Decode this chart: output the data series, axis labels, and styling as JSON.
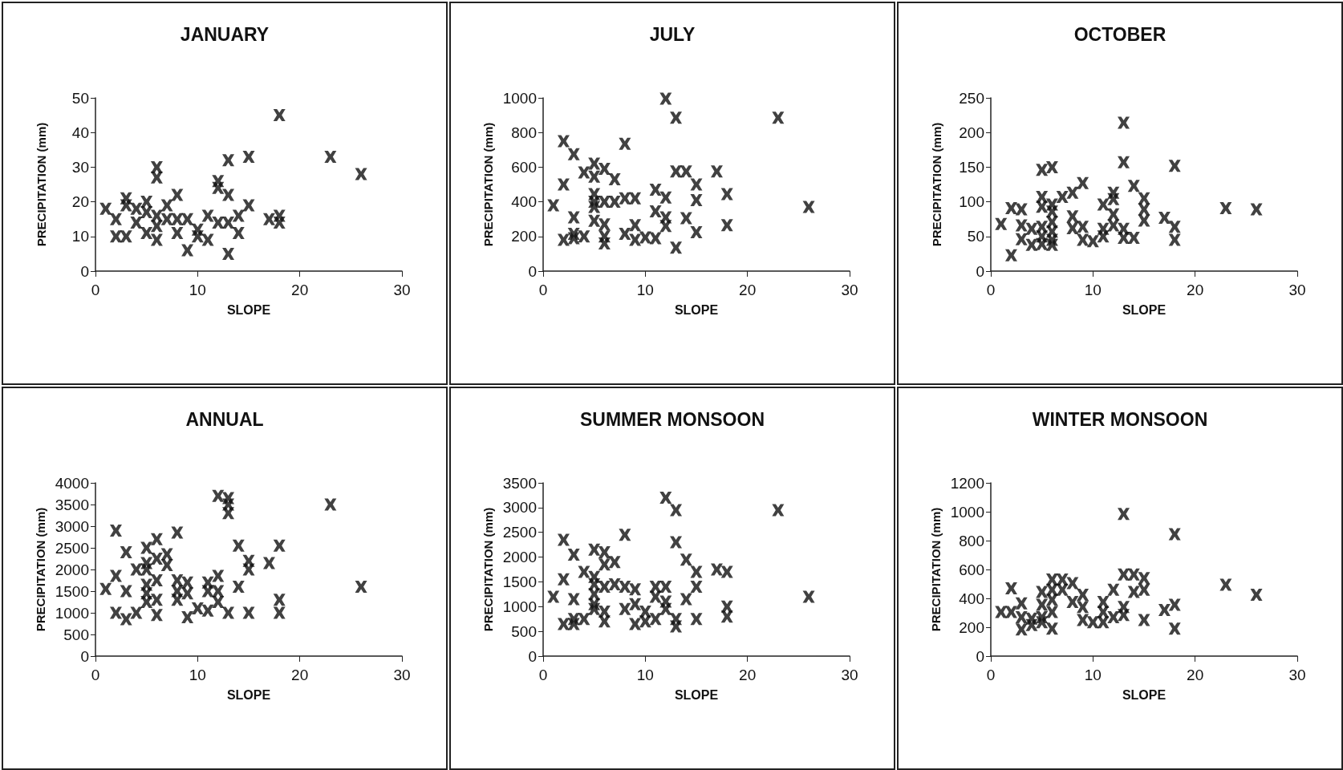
{
  "chart_data": [
    {
      "type": "scatter",
      "title": "JANUARY",
      "xlabel": "SLOPE",
      "ylabel": "PRECIPITATION (mm)",
      "color": "#111111",
      "marker": "cross",
      "xlim": [
        0,
        30
      ],
      "xticks": [
        0,
        10,
        20,
        30
      ],
      "ylim": [
        0,
        50
      ],
      "yticks": [
        0,
        10,
        20,
        30,
        40,
        50
      ],
      "x": [
        1,
        2,
        2,
        3,
        3,
        3,
        4,
        4,
        5,
        5,
        5,
        6,
        6,
        6,
        6,
        6,
        7,
        7,
        8,
        8,
        8,
        9,
        9,
        10,
        10,
        11,
        11,
        12,
        12,
        12,
        13,
        13,
        13,
        13,
        14,
        14,
        15,
        15,
        17,
        18,
        18,
        18,
        23,
        26
      ],
      "values": [
        18,
        15,
        10,
        10,
        21,
        19,
        18,
        14,
        20,
        17,
        11,
        16,
        30,
        27,
        9,
        13,
        19,
        15,
        22,
        11,
        15,
        15,
        6,
        12,
        10,
        16,
        9,
        26,
        24,
        14,
        32,
        22,
        5,
        14,
        16,
        11,
        33,
        19,
        15,
        45,
        16,
        14,
        33,
        28
      ]
    },
    {
      "type": "scatter",
      "title": "JULY",
      "xlabel": "SLOPE",
      "ylabel": "PRECIPITATION (mm)",
      "color": "#111111",
      "marker": "cross",
      "xlim": [
        0,
        30
      ],
      "xticks": [
        0,
        10,
        20,
        30
      ],
      "ylim": [
        0,
        1000
      ],
      "yticks": [
        0,
        200,
        400,
        600,
        800,
        1000
      ],
      "x": [
        1,
        2,
        2,
        2,
        3,
        3,
        3,
        3,
        4,
        4,
        5,
        5,
        5,
        5,
        5,
        5,
        6,
        6,
        6,
        6,
        6,
        7,
        7,
        8,
        8,
        8,
        9,
        9,
        9,
        10,
        11,
        11,
        11,
        12,
        12,
        12,
        12,
        13,
        13,
        13,
        14,
        14,
        15,
        15,
        15,
        17,
        18,
        18,
        23,
        26
      ],
      "values": [
        380,
        750,
        500,
        180,
        675,
        310,
        215,
        190,
        200,
        570,
        620,
        545,
        445,
        400,
        290,
        370,
        590,
        400,
        270,
        200,
        160,
        530,
        400,
        735,
        420,
        215,
        420,
        265,
        180,
        195,
        470,
        345,
        190,
        995,
        425,
        310,
        260,
        885,
        575,
        135,
        575,
        305,
        500,
        410,
        225,
        575,
        445,
        265,
        885,
        370
      ]
    },
    {
      "type": "scatter",
      "title": "OCTOBER",
      "xlabel": "SLOPE",
      "ylabel": "PRECIPITATION (mm)",
      "color": "#111111",
      "marker": "cross",
      "xlim": [
        0,
        30
      ],
      "xticks": [
        0,
        10,
        20,
        30
      ],
      "ylim": [
        0,
        250
      ],
      "yticks": [
        0,
        50,
        100,
        150,
        200,
        250
      ],
      "x": [
        1,
        2,
        2,
        3,
        3,
        3,
        4,
        4,
        5,
        5,
        5,
        5,
        5,
        5,
        6,
        6,
        6,
        6,
        6,
        6,
        6,
        7,
        8,
        8,
        8,
        9,
        9,
        9,
        10,
        11,
        11,
        11,
        12,
        12,
        12,
        12,
        13,
        13,
        13,
        13,
        14,
        14,
        15,
        15,
        15,
        17,
        18,
        18,
        18,
        23,
        26
      ],
      "values": [
        68,
        91,
        23,
        89,
        66,
        46,
        61,
        38,
        146,
        107,
        93,
        64,
        50,
        39,
        150,
        96,
        86,
        71,
        57,
        45,
        38,
        107,
        113,
        79,
        62,
        127,
        64,
        45,
        43,
        96,
        61,
        50,
        113,
        104,
        82,
        66,
        214,
        157,
        61,
        48,
        123,
        48,
        105,
        89,
        73,
        77,
        152,
        64,
        45,
        91,
        89
      ]
    },
    {
      "type": "scatter",
      "title": "ANNUAL",
      "xlabel": "SLOPE",
      "ylabel": "PRECIPITATION (mm)",
      "color": "#111111",
      "marker": "cross",
      "xlim": [
        0,
        30
      ],
      "xticks": [
        0,
        10,
        20,
        30
      ],
      "ylim": [
        0,
        4000
      ],
      "yticks": [
        0,
        500,
        1000,
        1500,
        2000,
        2500,
        3000,
        3500,
        4000
      ],
      "x": [
        1,
        2,
        2,
        2,
        3,
        3,
        3,
        4,
        4,
        5,
        5,
        5,
        5,
        5,
        5,
        6,
        6,
        6,
        6,
        6,
        7,
        7,
        8,
        8,
        8,
        8,
        9,
        9,
        9,
        10,
        11,
        11,
        11,
        12,
        12,
        12,
        12,
        13,
        13,
        13,
        13,
        14,
        14,
        15,
        15,
        15,
        17,
        18,
        18,
        18,
        23,
        26
      ],
      "values": [
        1550,
        2900,
        1850,
        1000,
        2400,
        1500,
        850,
        1000,
        2000,
        2500,
        2000,
        1650,
        1450,
        1250,
        2150,
        2700,
        2250,
        1750,
        1300,
        950,
        2350,
        2100,
        2850,
        1750,
        1500,
        1300,
        1700,
        1450,
        900,
        1100,
        1700,
        1500,
        1050,
        3700,
        1850,
        1500,
        1250,
        3650,
        3500,
        3300,
        1000,
        2550,
        1600,
        2200,
        2000,
        1000,
        2150,
        2550,
        1300,
        1000,
        3500,
        1600
      ]
    },
    {
      "type": "scatter",
      "title": "SUMMER MONSOON",
      "xlabel": "SLOPE",
      "ylabel": "PRECIPITATION (mm)",
      "color": "#111111",
      "marker": "cross",
      "xlim": [
        0,
        30
      ],
      "xticks": [
        0,
        10,
        20,
        30
      ],
      "ylim": [
        0,
        3500
      ],
      "yticks": [
        0,
        500,
        1000,
        1500,
        2000,
        2500,
        3000,
        3500
      ],
      "x": [
        1,
        2,
        2,
        2,
        3,
        3,
        3,
        3,
        4,
        4,
        5,
        5,
        5,
        5,
        5,
        5,
        6,
        6,
        6,
        6,
        6,
        7,
        7,
        8,
        8,
        8,
        9,
        9,
        9,
        10,
        10,
        11,
        11,
        11,
        12,
        12,
        12,
        12,
        13,
        13,
        13,
        13,
        14,
        14,
        15,
        15,
        15,
        17,
        18,
        18,
        18,
        23,
        26
      ],
      "values": [
        1200,
        2350,
        1550,
        650,
        2050,
        1150,
        650,
        750,
        750,
        1700,
        2150,
        1600,
        1450,
        1250,
        1050,
        950,
        2100,
        1850,
        1400,
        900,
        700,
        1900,
        1450,
        2450,
        950,
        1400,
        1350,
        1050,
        650,
        900,
        700,
        750,
        1400,
        1200,
        1400,
        3200,
        1100,
        950,
        2950,
        2300,
        750,
        600,
        1950,
        1150,
        1700,
        1400,
        750,
        1750,
        1700,
        1000,
        800,
        2950,
        1200
      ]
    },
    {
      "type": "scatter",
      "title": "WINTER MONSOON",
      "xlabel": "SLOPE",
      "ylabel": "PRECIPITATION (mm)",
      "color": "#111111",
      "marker": "cross",
      "xlim": [
        0,
        30
      ],
      "xticks": [
        0,
        10,
        20,
        30
      ],
      "ylim": [
        0,
        1200
      ],
      "yticks": [
        0,
        200,
        400,
        600,
        800,
        1000,
        1200
      ],
      "x": [
        1,
        2,
        2,
        3,
        3,
        3,
        4,
        4,
        5,
        5,
        5,
        5,
        6,
        6,
        6,
        6,
        6,
        7,
        7,
        8,
        8,
        9,
        9,
        9,
        10,
        11,
        11,
        11,
        12,
        12,
        13,
        13,
        13,
        13,
        14,
        14,
        15,
        15,
        15,
        17,
        18,
        18,
        18,
        23,
        26
      ],
      "values": [
        305,
        470,
        305,
        365,
        185,
        270,
        260,
        215,
        445,
        355,
        270,
        235,
        530,
        460,
        390,
        305,
        190,
        530,
        460,
        505,
        375,
        425,
        340,
        250,
        235,
        235,
        375,
        305,
        460,
        270,
        985,
        565,
        340,
        285,
        565,
        445,
        540,
        460,
        250,
        320,
        845,
        355,
        190,
        495,
        425
      ]
    }
  ]
}
